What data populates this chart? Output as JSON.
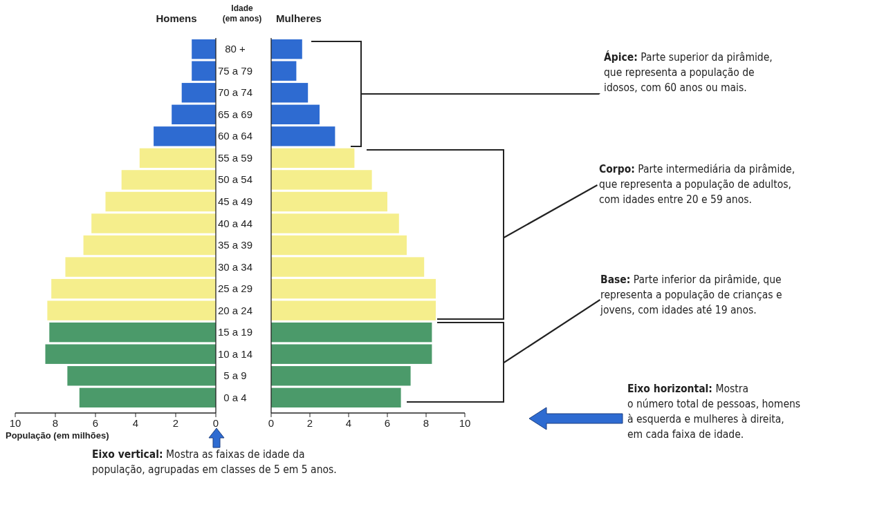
{
  "chart_data": [
    {
      "type": "bar",
      "orientation": "horizontal",
      "title": "Homens",
      "ylabel": "Idade (em anos)",
      "xlabel": "População (em milhões)",
      "categories": [
        "80 +",
        "75 a 79",
        "70 a 74",
        "65 a 69",
        "60 a 64",
        "55 a 59",
        "50 a 54",
        "45 a 49",
        "40 a 44",
        "35 a 39",
        "30 a 34",
        "25 a 29",
        "20 a 24",
        "15 a 19",
        "10 a 14",
        "5 a 9",
        "0 a 4"
      ],
      "values": [
        1.2,
        1.2,
        1.7,
        2.2,
        3.1,
        3.8,
        4.7,
        5.5,
        6.2,
        6.6,
        7.5,
        8.2,
        8.4,
        8.3,
        8.5,
        7.4,
        6.8
      ],
      "colors": [
        "#2e6bd1",
        "#2e6bd1",
        "#2e6bd1",
        "#2e6bd1",
        "#2e6bd1",
        "#f5ee8c",
        "#f5ee8c",
        "#f5ee8c",
        "#f5ee8c",
        "#f5ee8c",
        "#f5ee8c",
        "#f5ee8c",
        "#f5ee8c",
        "#4b9a6a",
        "#4b9a6a",
        "#4b9a6a",
        "#4b9a6a"
      ],
      "xlim": [
        10,
        0
      ],
      "xticks": [
        10,
        8,
        6,
        4,
        2,
        0
      ],
      "annotations": [
        "Eixo vertical: Mostra as faixas de idade da\npopulação, agrupadas em classes de 5 em 5 anos."
      ]
    },
    {
      "type": "bar",
      "orientation": "horizontal",
      "title": "Mulheres",
      "values": [
        1.6,
        1.3,
        1.9,
        2.5,
        3.3,
        4.3,
        5.2,
        6.0,
        6.6,
        7.0,
        7.9,
        8.5,
        8.5,
        8.3,
        8.3,
        7.2,
        6.7
      ],
      "colors": [
        "#2e6bd1",
        "#2e6bd1",
        "#2e6bd1",
        "#2e6bd1",
        "#2e6bd1",
        "#f5ee8c",
        "#f5ee8c",
        "#f5ee8c",
        "#f5ee8c",
        "#f5ee8c",
        "#f5ee8c",
        "#f5ee8c",
        "#f5ee8c",
        "#4b9a6a",
        "#4b9a6a",
        "#4b9a6a",
        "#4b9a6a"
      ],
      "xlim": [
        0,
        10
      ],
      "xticks": [
        0,
        2,
        4,
        6,
        8,
        10
      ],
      "annotations": [
        "Ápice: Parte superior da pirâmide,\nque representa a população de\nidosos, com 60 anos ou mais.",
        "Corpo: Parte intermediária da pirâmide,\nque representa a população de adultos,\ncom idades entre 20 e 59 anos.",
        "Base: Parte inferior da pirâmide, que\nrepresenta a população de crianças e\njovens, com idades até 19 anos.",
        "Eixo horizontal: Mostra\no número total de pessoas, homens\nà esquerda e mulheres à direita,\nem cada faixa de idade."
      ]
    }
  ]
}
